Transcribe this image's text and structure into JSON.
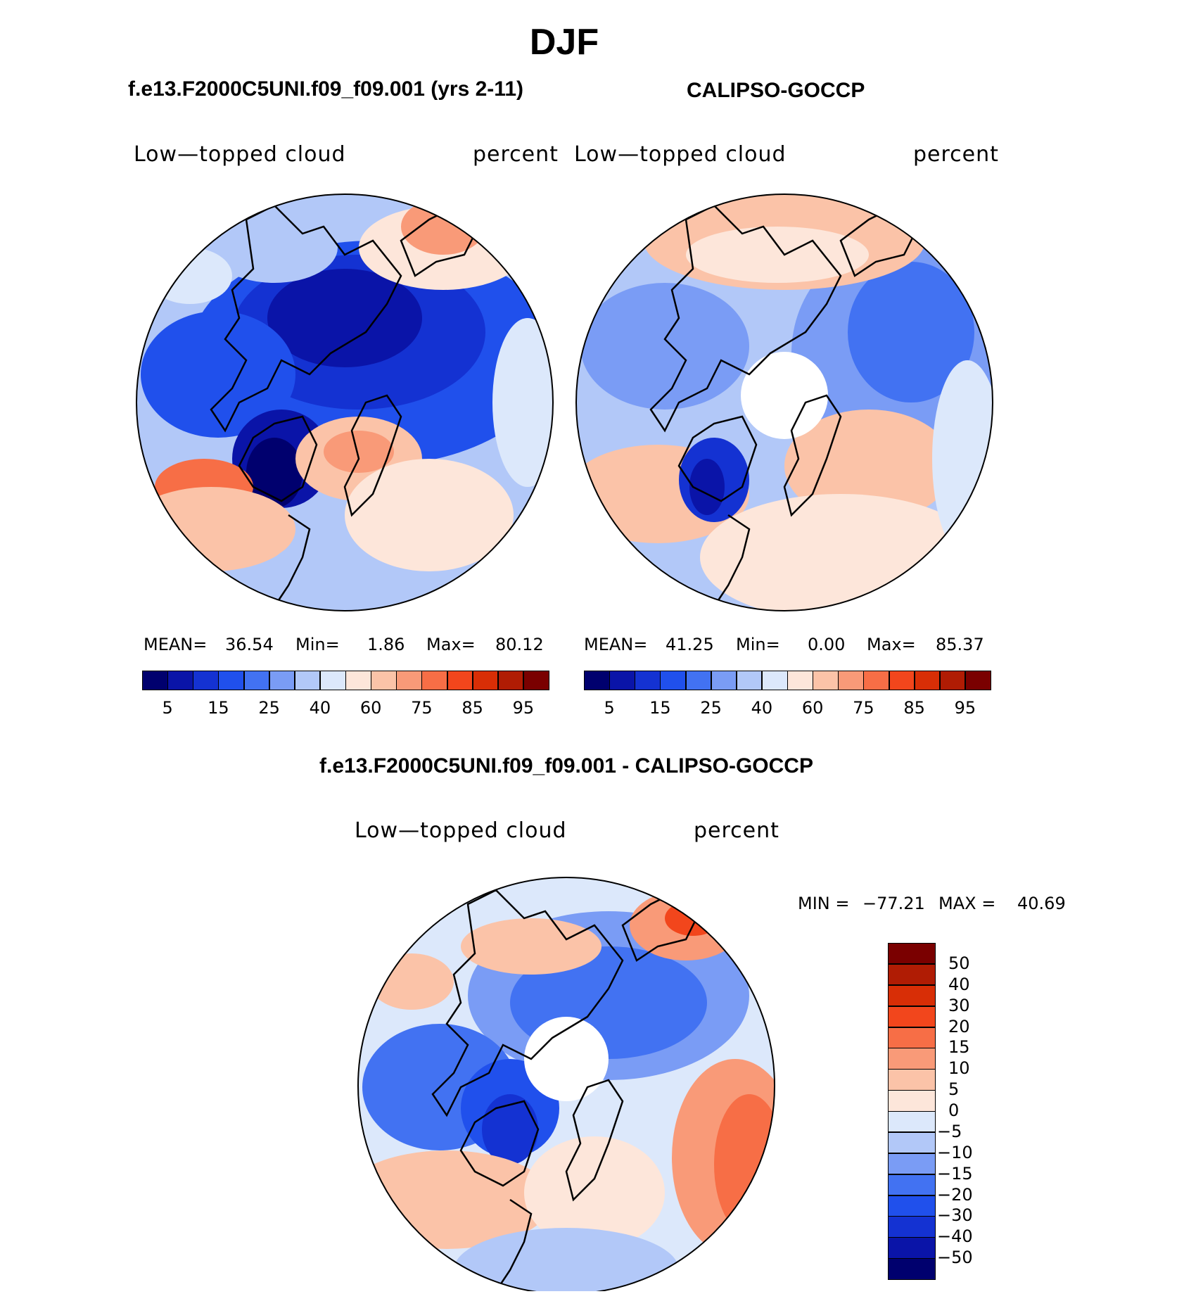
{
  "page": {
    "season": "DJF",
    "left_title": "f.e13.F2000C5UNI.f09_f09.001 (yrs 2-11)",
    "right_title": "CALIPSO-GOCCP",
    "diff_title": "f.e13.F2000C5UNI.f09_f09.001 - CALIPSO-GOCCP"
  },
  "panels": {
    "model": {
      "variable": "Low—topped cloud",
      "units": "percent",
      "stats": {
        "mean_label": "MEAN=",
        "mean": "36.54",
        "min_label": "Min=",
        "min": "1.86",
        "max_label": "Max=",
        "max": "80.12"
      }
    },
    "obs": {
      "variable": "Low—topped cloud",
      "units": "percent",
      "stats": {
        "mean_label": "MEAN=",
        "mean": "41.25",
        "min_label": "Min=",
        "min": "0.00",
        "max_label": "Max=",
        "max": "85.37"
      }
    },
    "diff": {
      "variable": "Low—topped cloud",
      "units": "percent",
      "stats": {
        "min_label": "MIN =",
        "min": "−77.21",
        "max_label": "MAX =",
        "max": "40.69"
      }
    }
  },
  "chart_data": [
    {
      "type": "heatmap",
      "title": "f.e13.F2000C5UNI.f09_f09.001 (yrs 2-11)",
      "projection": "north polar stereographic",
      "variable": "Low-topped cloud",
      "units": "percent",
      "mean": 36.54,
      "min": 1.86,
      "max": 80.12,
      "colorbar_levels": [
        5,
        10,
        15,
        20,
        25,
        30,
        40,
        50,
        60,
        70,
        75,
        80,
        85,
        90,
        95
      ],
      "colorbar_tick_labels": [
        "5",
        "15",
        "25",
        "40",
        "60",
        "75",
        "85",
        "95"
      ]
    },
    {
      "type": "heatmap",
      "title": "CALIPSO-GOCCP",
      "projection": "north polar stereographic",
      "variable": "Low-topped cloud",
      "units": "percent",
      "mean": 41.25,
      "min": 0.0,
      "max": 85.37,
      "colorbar_levels": [
        5,
        10,
        15,
        20,
        25,
        30,
        40,
        50,
        60,
        70,
        75,
        80,
        85,
        90,
        95
      ],
      "colorbar_tick_labels": [
        "5",
        "15",
        "25",
        "40",
        "60",
        "75",
        "85",
        "95"
      ]
    },
    {
      "type": "heatmap",
      "title": "f.e13.F2000C5UNI.f09_f09.001 - CALIPSO-GOCCP",
      "projection": "north polar stereographic",
      "variable": "Low-topped cloud",
      "units": "percent",
      "min": -77.21,
      "max": 40.69,
      "colorbar_levels": [
        50,
        40,
        30,
        20,
        15,
        10,
        5,
        0,
        -5,
        -10,
        -15,
        -20,
        -30,
        -40,
        -50
      ],
      "colorbar_tick_labels": [
        "50",
        "40",
        "30",
        "20",
        "15",
        "10",
        "5",
        "0",
        "−5",
        "−10",
        "−15",
        "−20",
        "−30",
        "−40",
        "−50"
      ]
    }
  ],
  "palette": [
    "#00006e",
    "#0a14a8",
    "#1432d2",
    "#2050ec",
    "#4272f2",
    "#7a9cf5",
    "#b2c8f8",
    "#dce8fb",
    "#fde6da",
    "#fbc3a8",
    "#f99a78",
    "#f76e46",
    "#f2461c",
    "#d82e06",
    "#b01c04",
    "#7a0000"
  ]
}
